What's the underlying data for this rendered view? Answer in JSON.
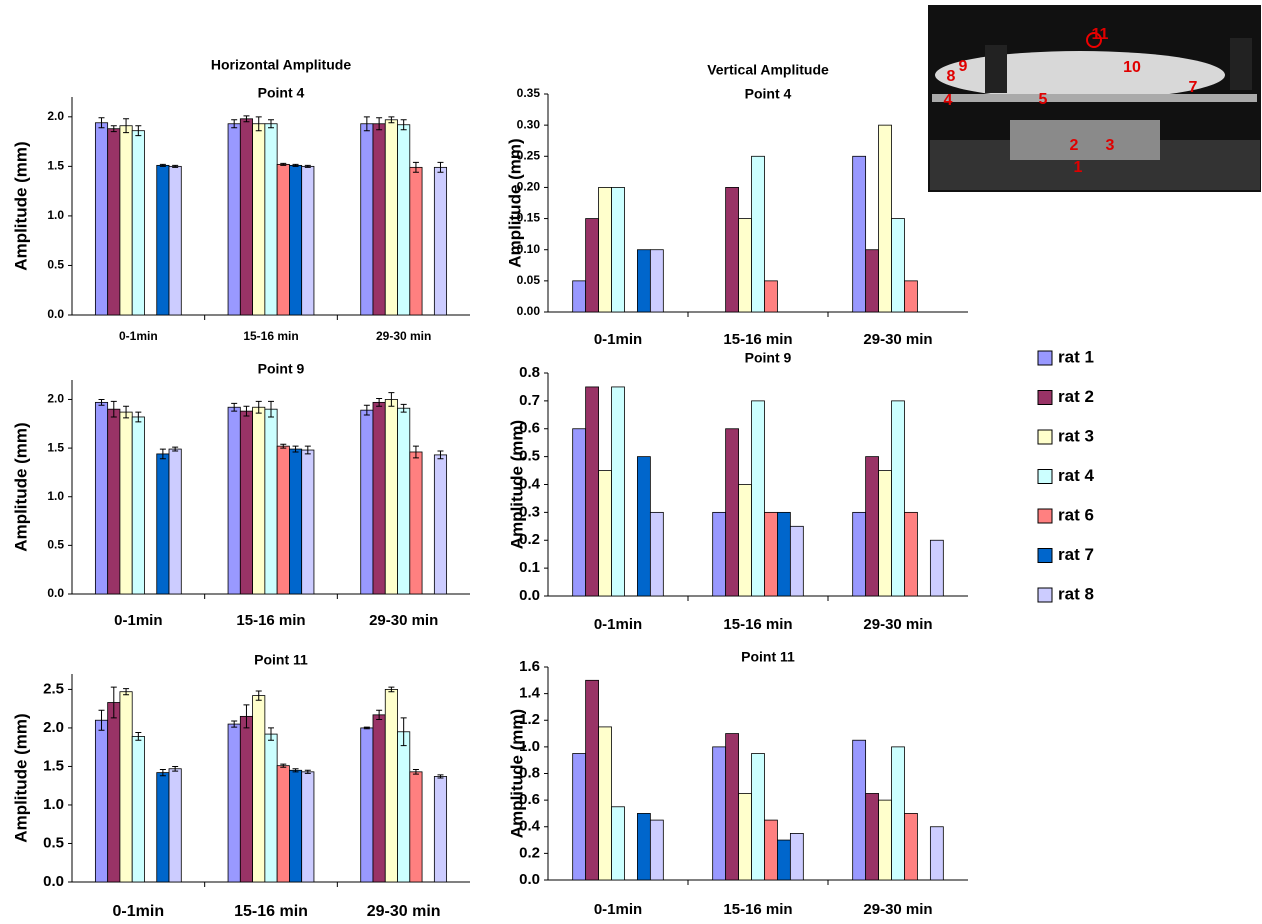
{
  "chart_data": [
    {
      "type": "bar",
      "title": "Horizontal Amplitude",
      "subtitle": "Point 4",
      "y_label": "Amplitude (mm)",
      "categories": [
        "0-1min",
        "15-16 min",
        "29-30 min"
      ],
      "ylim": [
        0,
        2.2
      ],
      "yticks": [
        {
          "value": 0,
          "label": "0.0"
        },
        {
          "value": 0.5,
          "label": "0.5"
        },
        {
          "value": 1,
          "label": "1.0"
        },
        {
          "value": 1.5,
          "label": "1.5"
        },
        {
          "value": 2,
          "label": "2.0"
        }
      ],
      "series": [
        {
          "name": "rat 1",
          "color": "#9999ff",
          "values": [
            1.94,
            1.93,
            1.93
          ],
          "errors": [
            0.05,
            0.04,
            0.07
          ]
        },
        {
          "name": "rat 2",
          "color": "#993366",
          "values": [
            1.88,
            1.98,
            1.93
          ],
          "errors": [
            0.03,
            0.03,
            0.06
          ]
        },
        {
          "name": "rat 3",
          "color": "#ffffcc",
          "values": [
            1.91,
            1.93,
            1.97
          ],
          "errors": [
            0.07,
            0.07,
            0.03
          ]
        },
        {
          "name": "rat 4",
          "color": "#ccffff",
          "values": [
            1.86,
            1.93,
            1.92
          ],
          "errors": [
            0.05,
            0.04,
            0.05
          ]
        },
        {
          "name": "rat 6",
          "color": "#ff8080",
          "values": [
            null,
            1.52,
            1.49
          ],
          "errors": [
            null,
            0.01,
            0.05
          ]
        },
        {
          "name": "rat 7",
          "color": "#0066cc",
          "values": [
            1.51,
            1.51,
            null
          ],
          "errors": [
            0.01,
            0.01,
            null
          ]
        },
        {
          "name": "rat 8",
          "color": "#ccccff",
          "values": [
            1.5,
            1.5,
            1.49
          ],
          "errors": [
            0.01,
            0.01,
            0.05
          ]
        }
      ]
    },
    {
      "type": "bar",
      "title": "Vertical Amplitude",
      "subtitle": "Point 4",
      "y_label": "Amplitude (mm)",
      "categories": [
        "0-1min",
        "15-16 min",
        "29-30 min"
      ],
      "ylim": [
        0,
        0.35
      ],
      "yticks": [
        {
          "value": 0,
          "label": "0.00"
        },
        {
          "value": 0.05,
          "label": "0.05"
        },
        {
          "value": 0.1,
          "label": "0.10"
        },
        {
          "value": 0.15,
          "label": "0.15"
        },
        {
          "value": 0.2,
          "label": "0.20"
        },
        {
          "value": 0.25,
          "label": "0.25"
        },
        {
          "value": 0.3,
          "label": "0.30"
        },
        {
          "value": 0.35,
          "label": "0.35"
        }
      ],
      "series": [
        {
          "name": "rat 1",
          "color": "#9999ff",
          "values": [
            0.05,
            null,
            0.25
          ]
        },
        {
          "name": "rat 2",
          "color": "#993366",
          "values": [
            0.15,
            0.2,
            0.1
          ]
        },
        {
          "name": "rat 3",
          "color": "#ffffcc",
          "values": [
            0.2,
            0.15,
            0.3
          ]
        },
        {
          "name": "rat 4",
          "color": "#ccffff",
          "values": [
            0.2,
            0.25,
            0.15
          ]
        },
        {
          "name": "rat 6",
          "color": "#ff8080",
          "values": [
            null,
            0.05,
            0.05
          ]
        },
        {
          "name": "rat 7",
          "color": "#0066cc",
          "values": [
            0.1,
            null,
            null
          ]
        },
        {
          "name": "rat 8",
          "color": "#ccccff",
          "values": [
            0.1,
            null,
            null
          ]
        }
      ]
    },
    {
      "type": "bar",
      "title": "Point 9",
      "y_label": "Amplitude (mm)",
      "categories": [
        "0-1min",
        "15-16 min",
        "29-30 min"
      ],
      "ylim": [
        0,
        2.2
      ],
      "yticks": [
        {
          "value": 0,
          "label": "0.0"
        },
        {
          "value": 0.5,
          "label": "0.5"
        },
        {
          "value": 1,
          "label": "1.0"
        },
        {
          "value": 1.5,
          "label": "1.5"
        },
        {
          "value": 2,
          "label": "2.0"
        }
      ],
      "series": [
        {
          "name": "rat 1",
          "color": "#9999ff",
          "values": [
            1.97,
            1.92,
            1.89
          ],
          "errors": [
            0.03,
            0.04,
            0.05
          ]
        },
        {
          "name": "rat 2",
          "color": "#993366",
          "values": [
            1.9,
            1.88,
            1.97
          ],
          "errors": [
            0.08,
            0.05,
            0.04
          ]
        },
        {
          "name": "rat 3",
          "color": "#ffffcc",
          "values": [
            1.87,
            1.92,
            2.0
          ],
          "errors": [
            0.06,
            0.06,
            0.07
          ]
        },
        {
          "name": "rat 4",
          "color": "#ccffff",
          "values": [
            1.82,
            1.9,
            1.91
          ],
          "errors": [
            0.05,
            0.08,
            0.04
          ]
        },
        {
          "name": "rat 6",
          "color": "#ff8080",
          "values": [
            null,
            1.52,
            1.46
          ],
          "errors": [
            null,
            0.02,
            0.06
          ]
        },
        {
          "name": "rat 7",
          "color": "#0066cc",
          "values": [
            1.44,
            1.49,
            null
          ],
          "errors": [
            0.05,
            0.03,
            null
          ]
        },
        {
          "name": "rat 8",
          "color": "#ccccff",
          "values": [
            1.49,
            1.48,
            1.43
          ],
          "errors": [
            0.02,
            0.04,
            0.04
          ]
        }
      ]
    },
    {
      "type": "bar",
      "title": "Point 9",
      "y_label": "Amplitude (mm)",
      "categories": [
        "0-1min",
        "15-16 min",
        "29-30 min"
      ],
      "ylim": [
        0,
        0.8
      ],
      "yticks": [
        {
          "value": 0,
          "label": "0.0"
        },
        {
          "value": 0.1,
          "label": "0.1"
        },
        {
          "value": 0.2,
          "label": "0.2"
        },
        {
          "value": 0.3,
          "label": "0.3"
        },
        {
          "value": 0.4,
          "label": "0.4"
        },
        {
          "value": 0.5,
          "label": "0.5"
        },
        {
          "value": 0.6,
          "label": "0.6"
        },
        {
          "value": 0.7,
          "label": "0.7"
        },
        {
          "value": 0.8,
          "label": "0.8"
        }
      ],
      "series": [
        {
          "name": "rat 1",
          "color": "#9999ff",
          "values": [
            0.6,
            0.3,
            0.3
          ]
        },
        {
          "name": "rat 2",
          "color": "#993366",
          "values": [
            0.75,
            0.6,
            0.5
          ]
        },
        {
          "name": "rat 3",
          "color": "#ffffcc",
          "values": [
            0.45,
            0.4,
            0.45
          ]
        },
        {
          "name": "rat 4",
          "color": "#ccffff",
          "values": [
            0.75,
            0.7,
            0.7
          ]
        },
        {
          "name": "rat 6",
          "color": "#ff8080",
          "values": [
            null,
            0.3,
            0.3
          ]
        },
        {
          "name": "rat 7",
          "color": "#0066cc",
          "values": [
            0.5,
            0.3,
            null
          ]
        },
        {
          "name": "rat 8",
          "color": "#ccccff",
          "values": [
            0.3,
            0.25,
            0.2
          ]
        }
      ]
    },
    {
      "type": "bar",
      "title": "Point 11",
      "y_label": "Amplitude (mm)",
      "categories": [
        "0-1min",
        "15-16 min",
        "29-30 min"
      ],
      "ylim": [
        0,
        2.7
      ],
      "yticks": [
        {
          "value": 0,
          "label": "0.0"
        },
        {
          "value": 0.5,
          "label": "0.5"
        },
        {
          "value": 1,
          "label": "1.0"
        },
        {
          "value": 1.5,
          "label": "1.5"
        },
        {
          "value": 2,
          "label": "2.0"
        },
        {
          "value": 2.5,
          "label": "2.5"
        }
      ],
      "series": [
        {
          "name": "rat 1",
          "color": "#9999ff",
          "values": [
            2.1,
            2.05,
            2.0
          ],
          "errors": [
            0.13,
            0.04,
            0.01
          ]
        },
        {
          "name": "rat 2",
          "color": "#993366",
          "values": [
            2.33,
            2.15,
            2.17
          ],
          "errors": [
            0.2,
            0.15,
            0.06
          ]
        },
        {
          "name": "rat 3",
          "color": "#ffffcc",
          "values": [
            2.47,
            2.42,
            2.5
          ],
          "errors": [
            0.04,
            0.06,
            0.03
          ]
        },
        {
          "name": "rat 4",
          "color": "#ccffff",
          "values": [
            1.89,
            1.92,
            1.95
          ],
          "errors": [
            0.05,
            0.08,
            0.18
          ]
        },
        {
          "name": "rat 6",
          "color": "#ff8080",
          "values": [
            null,
            1.51,
            1.43
          ],
          "errors": [
            null,
            0.02,
            0.03
          ]
        },
        {
          "name": "rat 7",
          "color": "#0066cc",
          "values": [
            1.42,
            1.45,
            null
          ],
          "errors": [
            0.04,
            0.02,
            null
          ]
        },
        {
          "name": "rat 8",
          "color": "#ccccff",
          "values": [
            1.47,
            1.43,
            1.37
          ],
          "errors": [
            0.03,
            0.02,
            0.02
          ]
        }
      ]
    },
    {
      "type": "bar",
      "title": "Point 11",
      "y_label": "Amplitude (mm)",
      "categories": [
        "0-1min",
        "15-16 min",
        "29-30 min"
      ],
      "ylim": [
        0,
        1.6
      ],
      "yticks": [
        {
          "value": 0,
          "label": "0.0"
        },
        {
          "value": 0.2,
          "label": "0.2"
        },
        {
          "value": 0.4,
          "label": "0.4"
        },
        {
          "value": 0.6,
          "label": "0.6"
        },
        {
          "value": 0.8,
          "label": "0.8"
        },
        {
          "value": 1,
          "label": "1.0"
        },
        {
          "value": 1.2,
          "label": "1.2"
        },
        {
          "value": 1.4,
          "label": "1.4"
        },
        {
          "value": 1.6,
          "label": "1.6"
        }
      ],
      "series": [
        {
          "name": "rat 1",
          "color": "#9999ff",
          "values": [
            0.95,
            1.0,
            1.05
          ]
        },
        {
          "name": "rat 2",
          "color": "#993366",
          "values": [
            1.5,
            1.1,
            0.65
          ]
        },
        {
          "name": "rat 3",
          "color": "#ffffcc",
          "values": [
            1.15,
            0.65,
            0.6
          ]
        },
        {
          "name": "rat 4",
          "color": "#ccffff",
          "values": [
            0.55,
            0.95,
            1.0
          ]
        },
        {
          "name": "rat 6",
          "color": "#ff8080",
          "values": [
            null,
            0.45,
            0.5
          ]
        },
        {
          "name": "rat 7",
          "color": "#0066cc",
          "values": [
            0.5,
            0.3,
            null
          ]
        },
        {
          "name": "rat 8",
          "color": "#ccccff",
          "values": [
            0.45,
            0.35,
            0.4
          ]
        }
      ]
    }
  ],
  "photo": {
    "labels": [
      "11",
      "9",
      "10",
      "8",
      "4",
      "5",
      "7",
      "2",
      "3",
      "1"
    ]
  }
}
